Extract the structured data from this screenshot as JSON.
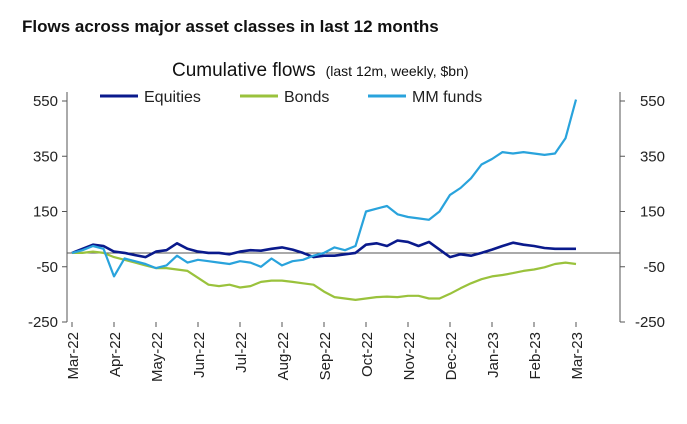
{
  "header": {
    "title": "Flows across major asset classes in last 12 months"
  },
  "chart_data": {
    "type": "line",
    "title": "Cumulative flows",
    "title_note": "(last 12m, weekly, $bn)",
    "xlabel": "",
    "ylabel": "",
    "x_tick_labels": [
      "Mar-22",
      "Apr-22",
      "May-22",
      "Jun-22",
      "Jul-22",
      "Aug-22",
      "Sep-22",
      "Oct-22",
      "Nov-22",
      "Dec-22",
      "Jan-23",
      "Feb-23",
      "Mar-23"
    ],
    "y_ticks": [
      550,
      350,
      150,
      -50,
      -250
    ],
    "y_tick_labels": [
      "550",
      "350",
      "150",
      "-50",
      "-250"
    ],
    "ylim": [
      -250,
      600
    ],
    "x_range_months": [
      0,
      12
    ],
    "grid": false,
    "axes": "left-and-right mirrored",
    "legend_position": "top-left",
    "series": [
      {
        "name": "Equities",
        "color": "#0a1a8c",
        "x": [
          0,
          0.25,
          0.5,
          0.75,
          1,
          1.25,
          1.5,
          1.75,
          2,
          2.25,
          2.5,
          2.75,
          3,
          3.25,
          3.5,
          3.75,
          4,
          4.25,
          4.5,
          4.75,
          5,
          5.25,
          5.5,
          5.75,
          6,
          6.25,
          6.5,
          6.75,
          7,
          7.25,
          7.5,
          7.75,
          8,
          8.25,
          8.5,
          8.75,
          9,
          9.25,
          9.5,
          9.75,
          10,
          10.25,
          10.5,
          10.75,
          11,
          11.25,
          11.5,
          11.75,
          12
        ],
        "values": [
          0,
          15,
          30,
          25,
          5,
          0,
          -8,
          -15,
          5,
          10,
          35,
          15,
          5,
          0,
          0,
          -5,
          5,
          10,
          8,
          15,
          20,
          12,
          0,
          -15,
          -10,
          -10,
          -5,
          0,
          30,
          35,
          25,
          45,
          40,
          25,
          40,
          12,
          -15,
          -5,
          -10,
          0,
          12,
          25,
          37,
          30,
          25,
          18,
          15,
          15,
          15
        ]
      },
      {
        "name": "Bonds",
        "color": "#9ac23c",
        "x": [
          0,
          0.25,
          0.5,
          0.75,
          1,
          1.25,
          1.5,
          1.75,
          2,
          2.25,
          2.5,
          2.75,
          3,
          3.25,
          3.5,
          3.75,
          4,
          4.25,
          4.5,
          4.75,
          5,
          5.25,
          5.5,
          5.75,
          6,
          6.25,
          6.5,
          6.75,
          7,
          7.25,
          7.5,
          7.75,
          8,
          8.25,
          8.5,
          8.75,
          9,
          9.25,
          9.5,
          9.75,
          10,
          10.25,
          10.5,
          10.75,
          11,
          11.25,
          11.5,
          11.75,
          12
        ],
        "values": [
          0,
          0,
          5,
          0,
          -15,
          -25,
          -35,
          -45,
          -55,
          -55,
          -60,
          -65,
          -90,
          -115,
          -120,
          -115,
          -125,
          -120,
          -105,
          -100,
          -100,
          -105,
          -110,
          -115,
          -140,
          -160,
          -165,
          -170,
          -165,
          -160,
          -158,
          -160,
          -155,
          -155,
          -165,
          -165,
          -148,
          -128,
          -110,
          -95,
          -85,
          -80,
          -73,
          -65,
          -60,
          -52,
          -40,
          -35,
          -40
        ]
      },
      {
        "name": "MM funds",
        "color": "#29a3dc",
        "x": [
          0,
          0.25,
          0.5,
          0.75,
          1,
          1.25,
          1.5,
          1.75,
          2,
          2.25,
          2.5,
          2.75,
          3,
          3.25,
          3.5,
          3.75,
          4,
          4.25,
          4.5,
          4.75,
          5,
          5.25,
          5.5,
          5.75,
          6,
          6.25,
          6.5,
          6.75,
          7,
          7.25,
          7.5,
          7.75,
          8,
          8.25,
          8.5,
          8.75,
          9,
          9.25,
          9.5,
          9.75,
          10,
          10.25,
          10.5,
          10.75,
          11,
          11.25,
          11.5,
          11.75,
          12
        ],
        "values": [
          0,
          10,
          25,
          15,
          -85,
          -20,
          -30,
          -40,
          -55,
          -45,
          -10,
          -35,
          -25,
          -30,
          -35,
          -40,
          -30,
          -35,
          -50,
          -20,
          -45,
          -30,
          -25,
          -10,
          0,
          20,
          10,
          25,
          150,
          160,
          170,
          140,
          130,
          125,
          120,
          150,
          210,
          235,
          270,
          320,
          340,
          365,
          360,
          365,
          360,
          355,
          360,
          415,
          555
        ]
      }
    ]
  }
}
